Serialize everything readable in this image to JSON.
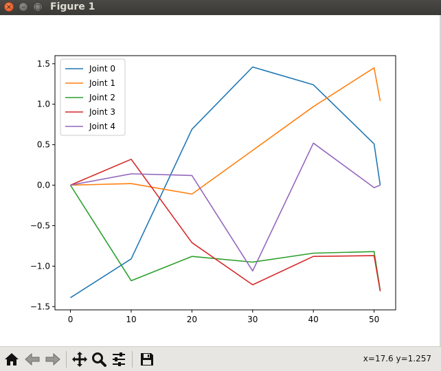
{
  "window": {
    "title": "Figure 1",
    "close_glyph": "×",
    "minimize_glyph": "–",
    "maximize_glyph": "□"
  },
  "toolbar": {
    "buttons": [
      {
        "name": "home",
        "icon": "home-icon"
      },
      {
        "name": "back",
        "icon": "back-arrow-icon"
      },
      {
        "name": "forward",
        "icon": "forward-arrow-icon"
      },
      {
        "name": "pan",
        "icon": "move-icon"
      },
      {
        "name": "zoom",
        "icon": "magnifier-icon"
      },
      {
        "name": "configure-subplots",
        "icon": "sliders-icon"
      },
      {
        "name": "save",
        "icon": "floppy-disk-icon"
      }
    ],
    "coordinates": "x=17.6 y=1.257"
  },
  "chart_data": {
    "type": "line",
    "title": "",
    "xlabel": "",
    "ylabel": "",
    "x": [
      0,
      10,
      20,
      30,
      40,
      50,
      51
    ],
    "xlim": [
      -2.55,
      53.55
    ],
    "ylim": [
      -1.54,
      1.6
    ],
    "xticks": [
      0,
      10,
      20,
      30,
      40,
      50
    ],
    "yticks": [
      -1.5,
      -1.0,
      -0.5,
      0.0,
      0.5,
      1.0,
      1.5
    ],
    "ytick_labels": [
      "−1.5",
      "−1.0",
      "−0.5",
      "0.0",
      "0.5",
      "1.0",
      "1.5"
    ],
    "grid": false,
    "legend_position": "upper-left",
    "series": [
      {
        "name": "Joint 0",
        "color": "#1f77b4",
        "values": [
          -1.39,
          -0.91,
          0.69,
          1.46,
          1.24,
          0.51,
          0.0
        ]
      },
      {
        "name": "Joint 1",
        "color": "#ff7f0e",
        "values": [
          0.0,
          0.02,
          -0.11,
          0.43,
          0.97,
          1.45,
          1.04
        ]
      },
      {
        "name": "Joint 2",
        "color": "#2ca02c",
        "values": [
          0.0,
          -1.18,
          -0.88,
          -0.95,
          -0.84,
          -0.82,
          -1.3
        ]
      },
      {
        "name": "Joint 3",
        "color": "#d62728",
        "values": [
          0.0,
          0.32,
          -0.71,
          -1.23,
          -0.88,
          -0.87,
          -1.31
        ]
      },
      {
        "name": "Joint 4",
        "color": "#9467bd",
        "values": [
          0.0,
          0.14,
          0.12,
          -1.06,
          0.52,
          -0.03,
          0.0
        ]
      }
    ]
  }
}
